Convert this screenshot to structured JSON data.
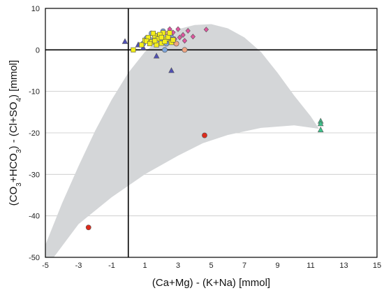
{
  "chart_data": {
    "type": "scatter",
    "title": "",
    "xlabel": "(Ca+Mg) - (K+Na) [mmol]",
    "ylabel_parts": [
      {
        "text": "(CO",
        "sub": false
      },
      {
        "text": "3",
        "sub": true
      },
      {
        "text": "+HCO",
        "sub": false
      },
      {
        "text": "3",
        "sub": true
      },
      {
        "text": ") - (Cl+SO",
        "sub": false
      },
      {
        "text": "4",
        "sub": true
      },
      {
        "text": ") [mmol]",
        "sub": false
      }
    ],
    "xlim": [
      -5,
      15
    ],
    "ylim": [
      -50,
      10
    ],
    "x_ticks": [
      -5,
      -3,
      -1,
      1,
      3,
      5,
      7,
      9,
      11,
      13,
      15
    ],
    "x_tick_labels": [
      "-5",
      "-3",
      "-1",
      "1",
      "3",
      "5",
      "7",
      "9",
      "11",
      "13",
      "15"
    ],
    "y_ticks": [
      -50,
      -40,
      -30,
      -20,
      -10,
      0,
      10
    ],
    "y_tick_labels": [
      "-50",
      "-40",
      "-30",
      "-20",
      "-10",
      "0",
      "10"
    ],
    "grid": "horizontal",
    "reference_lines": {
      "x": 0,
      "y": 0
    },
    "envelope": {
      "color": "#d4d6d8",
      "upper": [
        [
          -5,
          -47
        ],
        [
          -4,
          -37
        ],
        [
          -3,
          -28
        ],
        [
          -2,
          -19.5
        ],
        [
          -1,
          -12
        ],
        [
          0,
          -5.5
        ],
        [
          1,
          -0.5
        ],
        [
          2,
          3
        ],
        [
          3,
          5
        ],
        [
          4,
          6
        ],
        [
          5,
          6.2
        ],
        [
          6,
          5.2
        ],
        [
          7,
          3
        ],
        [
          8,
          -0.5
        ],
        [
          9,
          -5.5
        ],
        [
          10,
          -11
        ],
        [
          11,
          -16
        ],
        [
          11.5,
          -19
        ]
      ],
      "lower": [
        [
          11.5,
          -19
        ],
        [
          10,
          -18.2
        ],
        [
          8,
          -18.8
        ],
        [
          6,
          -20.5
        ],
        [
          4.5,
          -22.5
        ],
        [
          3,
          -25.5
        ],
        [
          1,
          -30
        ],
        [
          -1,
          -35.5
        ],
        [
          -3,
          -42
        ],
        [
          -4.5,
          -50
        ],
        [
          -5,
          -50
        ]
      ]
    },
    "series": [
      {
        "marker": "circle",
        "color": "#7ea6dc",
        "points": [
          [
            0.9,
            1.5
          ],
          [
            1.3,
            2.5
          ],
          [
            1.6,
            3.5
          ],
          [
            2.1,
            4.5
          ],
          [
            1.9,
            2.5
          ],
          [
            2.3,
            1.5
          ],
          [
            2.6,
            3.0
          ],
          [
            1.1,
            2.8
          ],
          [
            2.2,
            0.0
          ],
          [
            1.4,
            4.0
          ]
        ]
      },
      {
        "marker": "circle",
        "color": "#f0a582",
        "points": [
          [
            2.0,
            3.5
          ],
          [
            2.6,
            2.5
          ],
          [
            3.4,
            0.0
          ],
          [
            2.9,
            1.5
          ],
          [
            2.4,
            4.0
          ]
        ]
      },
      {
        "marker": "circle",
        "color": "#dd2b1c",
        "points": [
          [
            -2.4,
            -42.8
          ],
          [
            4.6,
            -20.6
          ]
        ]
      },
      {
        "marker": "triangle",
        "color": "#4f4fb4",
        "points": [
          [
            -0.2,
            2.0
          ],
          [
            0.6,
            1.2
          ],
          [
            1.7,
            -1.5
          ],
          [
            2.6,
            -5.0
          ],
          [
            0.9,
            0.5
          ]
        ]
      },
      {
        "marker": "triangle",
        "color": "#3cc48c",
        "points": [
          [
            11.6,
            -17.2
          ],
          [
            11.6,
            -17.8
          ],
          [
            11.6,
            -19.3
          ]
        ]
      },
      {
        "marker": "diamond",
        "color": "#e0559f",
        "points": [
          [
            2.7,
            4.2
          ],
          [
            3.0,
            5.0
          ],
          [
            3.3,
            3.6
          ],
          [
            3.6,
            4.6
          ],
          [
            2.8,
            2.6
          ],
          [
            3.4,
            2.2
          ],
          [
            3.9,
            3.2
          ],
          [
            4.7,
            4.9
          ],
          [
            3.1,
            3.0
          ],
          [
            2.5,
            5.0
          ]
        ]
      },
      {
        "marker": "square",
        "color": "#f4ef1a",
        "points": [
          [
            0.3,
            0.0
          ],
          [
            0.8,
            1.2
          ],
          [
            1.0,
            2.3
          ],
          [
            1.2,
            3.0
          ],
          [
            1.4,
            1.9
          ],
          [
            1.6,
            3.4
          ],
          [
            1.8,
            2.7
          ],
          [
            1.5,
            4.0
          ],
          [
            2.0,
            1.6
          ],
          [
            2.1,
            4.1
          ],
          [
            2.3,
            2.6
          ],
          [
            2.4,
            3.1
          ],
          [
            2.6,
            1.8
          ],
          [
            2.5,
            4.1
          ],
          [
            1.7,
            1.2
          ],
          [
            1.1,
            2.1
          ],
          [
            1.9,
            3.7
          ],
          [
            2.2,
            2.0
          ],
          [
            2.7,
            2.4
          ],
          [
            1.3,
            1.5
          ],
          [
            2.0,
            3.0
          ],
          [
            1.6,
            2.2
          ]
        ]
      }
    ]
  }
}
